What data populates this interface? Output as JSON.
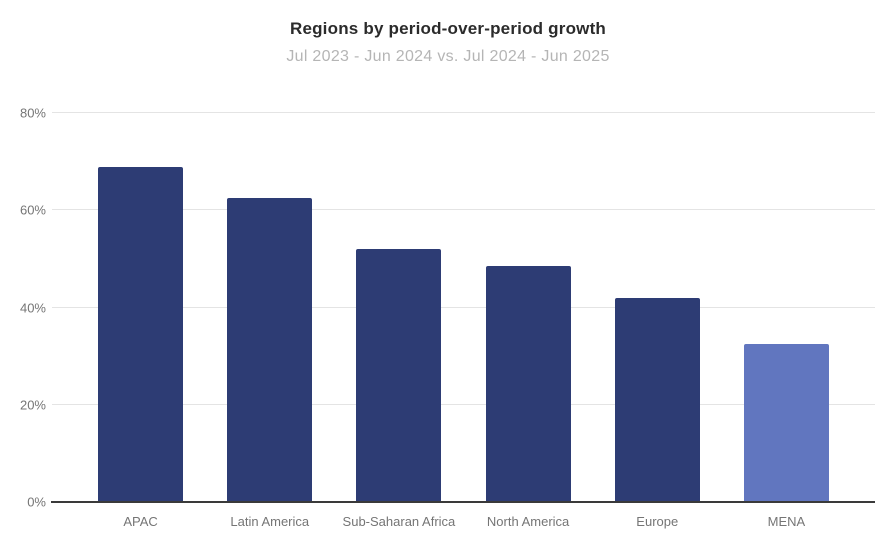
{
  "header": {
    "title": "Regions by period-over-period growth",
    "subtitle": "Jul 2023 - Jun 2024 vs. Jul 2024 - Jun 2025"
  },
  "chart_data": {
    "type": "bar",
    "title": "Regions by period-over-period growth",
    "subtitle": "Jul 2023 - Jun 2024 vs. Jul 2024 - Jun 2025",
    "categories": [
      "APAC",
      "Latin America",
      "Sub-Saharan Africa",
      "North America",
      "Europe",
      "MENA"
    ],
    "values": [
      69,
      62.5,
      52,
      48.5,
      42,
      32.5
    ],
    "bar_colors": [
      "#2d3c74",
      "#2d3c74",
      "#2d3c74",
      "#2d3c74",
      "#2d3c74",
      "#6176bf"
    ],
    "xlabel": "",
    "ylabel": "",
    "ylim": [
      0,
      80
    ],
    "y_tick_values": [
      0,
      20,
      40,
      60,
      80
    ],
    "y_tick_labels": [
      "0%",
      "20%",
      "40%",
      "60%",
      "80%"
    ],
    "grid": true,
    "legend": "none"
  },
  "colors": {
    "bar_primary": "#2d3c74",
    "bar_highlight": "#6176bf",
    "gridline": "#e4e4e4",
    "axis_line": "#3a3a3a",
    "tick_label": "#757575",
    "title": "#2b2b2b",
    "subtitle": "#b5b5b5",
    "background": "#ffffff"
  }
}
